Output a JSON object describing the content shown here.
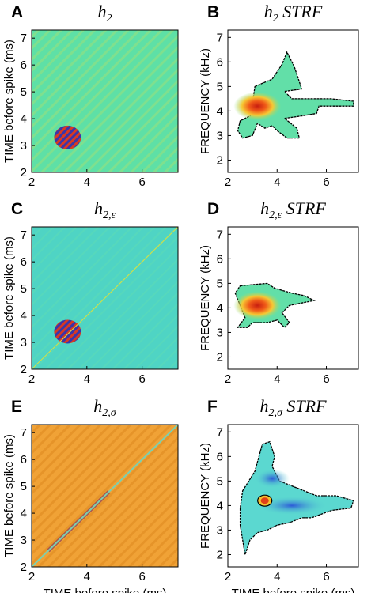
{
  "colors": {
    "bg_kernel": "#5ee0a6",
    "bg_kernel_c": "#4fd4c4",
    "bg_kernel_e": "#f0a236",
    "strf_fill": "#62dfa8",
    "strf_fill_f": "#5bd8d0",
    "hot": "#e03018",
    "cold": "#3a2ca8",
    "outline": "#000000"
  },
  "chart_data": [
    {
      "id": "A",
      "type": "heatmap",
      "panel_letter": "A",
      "title": "h",
      "title_sub": "2",
      "title_suffix": "",
      "x_ticks": [
        "2",
        "4",
        "6"
      ],
      "y_ticks": [
        "2",
        "3",
        "4",
        "5",
        "6",
        "7"
      ],
      "xlim": [
        2,
        7.3
      ],
      "ylim": [
        2,
        7.3
      ],
      "ylabel": "TIME before spike (ms)",
      "xlabel": "",
      "blob_center": [
        3.3,
        3.3
      ],
      "diagonal_line": false
    },
    {
      "id": "B",
      "type": "heatmap",
      "panel_letter": "B",
      "title": "h",
      "title_sub": "2",
      "title_suffix": " STRF",
      "x_ticks": [
        "2",
        "4",
        "6"
      ],
      "y_ticks": [
        "2",
        "3",
        "4",
        "5",
        "6",
        "7"
      ],
      "xlim": [
        2,
        7.3
      ],
      "ylim": [
        1.5,
        7.3
      ],
      "ylabel": "FREQUENCY (kHz)",
      "xlabel": "",
      "hotspot": [
        3.2,
        4.2
      ]
    },
    {
      "id": "C",
      "type": "heatmap",
      "panel_letter": "C",
      "title": "h",
      "title_sub": "2,ε",
      "title_suffix": "",
      "x_ticks": [
        "2",
        "4",
        "6"
      ],
      "y_ticks": [
        "2",
        "3",
        "4",
        "5",
        "6",
        "7"
      ],
      "xlim": [
        2,
        7.3
      ],
      "ylim": [
        2,
        7.3
      ],
      "ylabel": "TIME before spike (ms)",
      "xlabel": "",
      "blob_center": [
        3.3,
        3.4
      ],
      "diagonal_line": true
    },
    {
      "id": "D",
      "type": "heatmap",
      "panel_letter": "D",
      "title": "h",
      "title_sub": "2,ε",
      "title_suffix": " STRF",
      "x_ticks": [
        "2",
        "4",
        "6"
      ],
      "y_ticks": [
        "2",
        "3",
        "4",
        "5",
        "6",
        "7"
      ],
      "xlim": [
        2,
        7.3
      ],
      "ylim": [
        1.5,
        7.3
      ],
      "ylabel": "FREQUENCY (kHz)",
      "xlabel": "",
      "hotspot": [
        3.2,
        4.1
      ]
    },
    {
      "id": "E",
      "type": "heatmap",
      "panel_letter": "E",
      "title": "h",
      "title_sub": "2,σ",
      "title_suffix": "",
      "x_ticks": [
        "2",
        "4",
        "6"
      ],
      "y_ticks": [
        "2",
        "3",
        "4",
        "5",
        "6",
        "7"
      ],
      "xlim": [
        2,
        7.3
      ],
      "ylim": [
        2,
        7.3
      ],
      "ylabel": "TIME before spike (ms)",
      "xlabel": "TIME before spike (ms)",
      "diagonal_line": true
    },
    {
      "id": "F",
      "type": "heatmap",
      "panel_letter": "F",
      "title": "h",
      "title_sub": "2,σ",
      "title_suffix": " STRF",
      "x_ticks": [
        "2",
        "4",
        "6"
      ],
      "y_ticks": [
        "2",
        "3",
        "4",
        "5",
        "6",
        "7"
      ],
      "xlim": [
        2,
        7.3
      ],
      "ylim": [
        1.5,
        7.3
      ],
      "ylabel": "FREQUENCY (kHz)",
      "xlabel": "TIME before spike (ms)",
      "hotspot": [
        3.5,
        4.2
      ]
    }
  ]
}
